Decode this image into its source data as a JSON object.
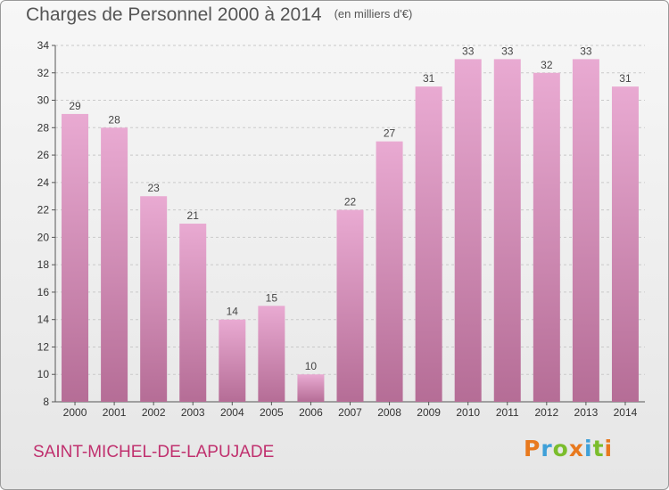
{
  "header": {
    "title": "Charges de Personnel 2000 à 2014",
    "unit": "(en milliers d'€)"
  },
  "footer": {
    "commune": "SAINT-MICHEL-DE-LAPUJADE",
    "logo": "Proxiti",
    "logo_colors": [
      "#e8791e",
      "#3fa0d8",
      "#7bbd2c",
      "#e8791e",
      "#3fa0d8",
      "#7bbd2c",
      "#e8791e"
    ]
  },
  "colors": {
    "bar_top": "#e9aad2",
    "bar_bottom": "#b56d96",
    "commune": "#c0306e"
  },
  "chart_data": {
    "type": "bar",
    "title": "Charges de Personnel 2000 à 2014",
    "subtitle": "(en milliers d'€)",
    "categories": [
      "2000",
      "2001",
      "2002",
      "2003",
      "2004",
      "2005",
      "2006",
      "2007",
      "2008",
      "2009",
      "2010",
      "2011",
      "2012",
      "2013",
      "2014"
    ],
    "values": [
      29,
      28,
      23,
      21,
      14,
      15,
      10,
      22,
      27,
      31,
      33,
      33,
      32,
      33,
      31
    ],
    "ylim": [
      8,
      34
    ],
    "yticks": [
      8,
      10,
      12,
      14,
      16,
      18,
      20,
      22,
      24,
      26,
      28,
      30,
      32,
      34
    ],
    "grid": true
  }
}
